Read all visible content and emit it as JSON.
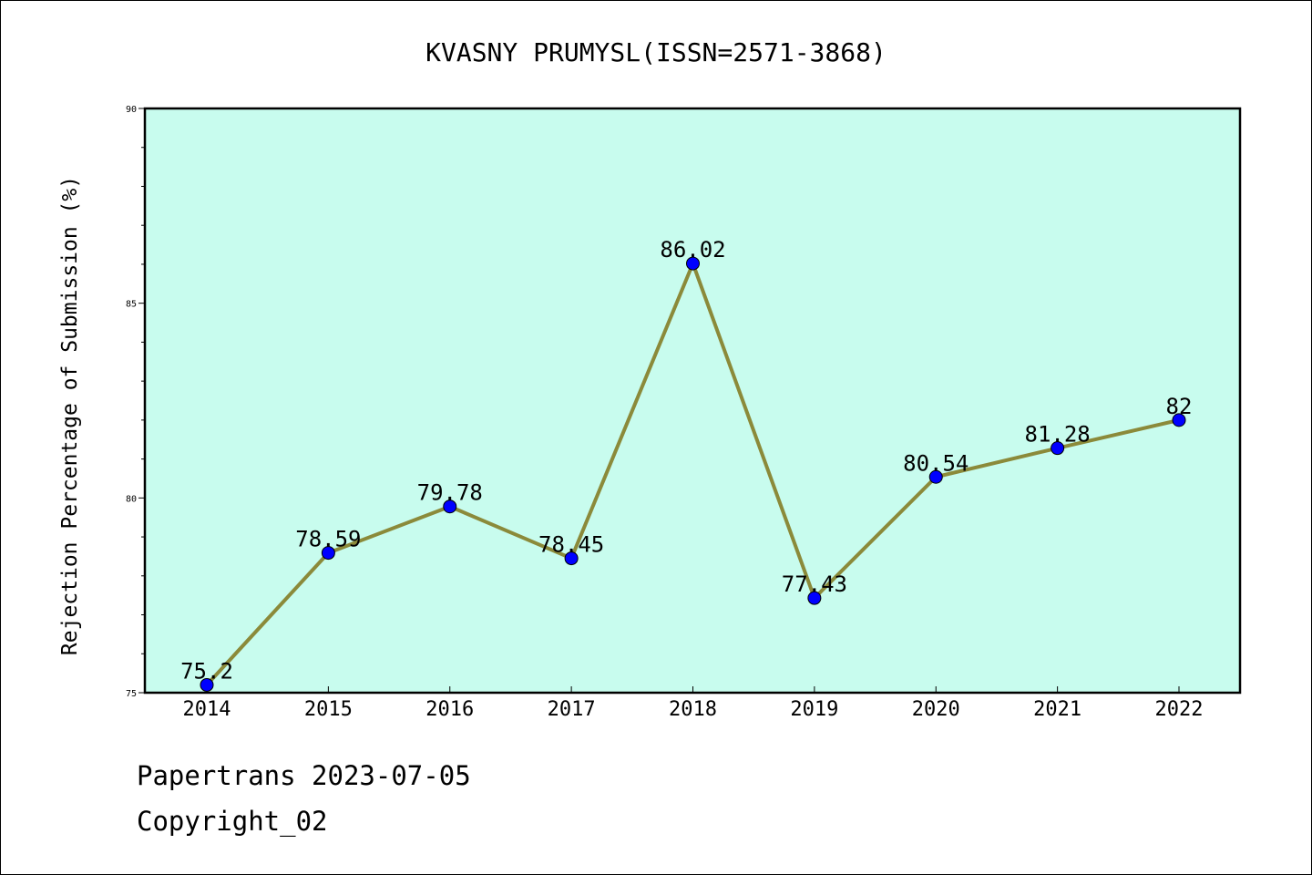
{
  "chart_data": {
    "type": "line",
    "title": "KVASNY PRUMYSL(ISSN=2571-3868)",
    "xlabel": "",
    "ylabel": "Rejection Percentage of Submission (%)",
    "categories": [
      "2014",
      "2015",
      "2016",
      "2017",
      "2018",
      "2019",
      "2020",
      "2021",
      "2022"
    ],
    "series": [
      {
        "values": [
          75.2,
          78.59,
          79.78,
          78.45,
          86.02,
          77.43,
          80.54,
          81.28,
          82
        ],
        "labels": [
          "75.2",
          "78.59",
          "79.78",
          "78.45",
          "86.02",
          "77.43",
          "80.54",
          "81.28",
          "82"
        ]
      }
    ],
    "ylim": [
      75,
      90
    ],
    "yticks": [
      "75",
      "80",
      "85",
      "90"
    ],
    "grid": false,
    "colors": {
      "plot_background": "#c8fcee",
      "line": "#8b8a3a",
      "marker": "#0000ff"
    }
  },
  "footer": {
    "line1": "Papertrans 2023-07-05",
    "line2": "Copyright_02"
  }
}
